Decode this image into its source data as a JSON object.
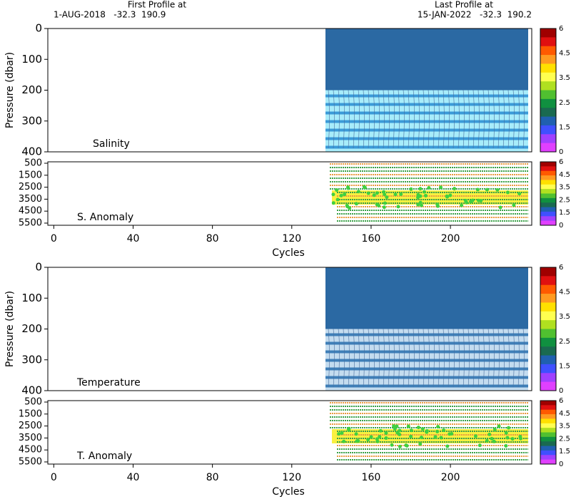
{
  "header": {
    "first_title": "First Profile at",
    "first_info": "1-AUG-2018   -32.3  190.9",
    "last_title": "Last Profile at",
    "last_info": "15-JAN-2022   -32.3  190.2"
  },
  "colorbar": {
    "colors": [
      "#a00000",
      "#e01010",
      "#ff5a00",
      "#ff9a20",
      "#ffe000",
      "#ffff50",
      "#b0e020",
      "#50c030",
      "#109040",
      "#1a6a50",
      "#2060b0",
      "#4050ff",
      "#a040ff",
      "#e040ff"
    ],
    "ticks": [
      6,
      4.5,
      3.5,
      2.5,
      1.5,
      0
    ]
  },
  "chart_data": [
    {
      "type": "heatmap",
      "label": "Salinity",
      "ylabel": "Pressure (dbar)",
      "ylim": [
        0,
        400
      ],
      "yticks": [
        0,
        100,
        200,
        300,
        400
      ]
    },
    {
      "type": "heatmap",
      "label": "S. Anomaly",
      "ylim": [
        380,
        5680
      ],
      "yticks": [
        500,
        1500,
        2500,
        3500,
        4500,
        5500
      ],
      "xlim": [
        -3,
        241
      ],
      "xticks": [
        0,
        40,
        80,
        120,
        160,
        200
      ],
      "xlabel": "Cycles"
    },
    {
      "type": "heatmap",
      "label": "Temperature",
      "ylabel": "Pressure (dbar)",
      "ylim": [
        0,
        400
      ],
      "yticks": [
        0,
        100,
        200,
        300,
        400
      ]
    },
    {
      "type": "heatmap",
      "label": "T. Anomaly",
      "ylim": [
        380,
        5680
      ],
      "yticks": [
        500,
        1500,
        2500,
        3500,
        4500,
        5500
      ],
      "xlim": [
        -3,
        241
      ],
      "xticks": [
        0,
        40,
        80,
        120,
        160,
        200
      ],
      "xlabel": "Cycles"
    }
  ]
}
